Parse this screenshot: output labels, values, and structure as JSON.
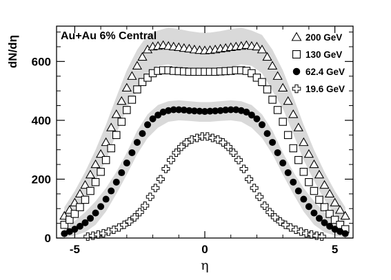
{
  "chart_data": {
    "type": "scatter",
    "title": "",
    "annotation": "Au+Au 6% Central",
    "xlabel": "η",
    "ylabel": "dN/dη",
    "xlim": [
      -5.7,
      5.7
    ],
    "ylim": [
      0,
      720
    ],
    "xticks": [
      -5,
      0,
      5
    ],
    "xtick_labels": [
      "-5",
      "0",
      "5"
    ],
    "yticks": [
      0,
      200,
      400,
      600
    ],
    "ytick_labels": [
      "0",
      "200",
      "400",
      "600"
    ],
    "grid": false,
    "legend_position": "top-right",
    "colors": {
      "band": "#d9d9d9",
      "marker": "#000000",
      "frame": "#000000",
      "background": "#ffffff"
    },
    "series": [
      {
        "name": "200 GeV",
        "marker": "open-triangle",
        "x": [
          -5.4,
          -5.2,
          -5.0,
          -4.8,
          -4.6,
          -4.4,
          -4.2,
          -4.0,
          -3.8,
          -3.6,
          -3.4,
          -3.2,
          -3.0,
          -2.8,
          -2.6,
          -2.4,
          -2.2,
          -2.0,
          -1.8,
          -1.6,
          -1.4,
          -1.2,
          -1.0,
          -0.8,
          -0.6,
          -0.4,
          -0.2,
          0.0,
          0.2,
          0.4,
          0.6,
          0.8,
          1.0,
          1.2,
          1.4,
          1.6,
          1.8,
          2.0,
          2.2,
          2.4,
          2.6,
          2.8,
          3.0,
          3.2,
          3.4,
          3.6,
          3.8,
          4.0,
          4.2,
          4.4,
          4.6,
          4.8,
          5.0,
          5.2,
          5.4
        ],
        "y": [
          75,
          95,
          120,
          150,
          180,
          215,
          250,
          285,
          325,
          375,
          420,
          465,
          510,
          550,
          585,
          615,
          640,
          650,
          652,
          655,
          652,
          650,
          648,
          645,
          643,
          640,
          638,
          637,
          638,
          640,
          643,
          645,
          648,
          650,
          652,
          655,
          652,
          650,
          640,
          615,
          585,
          550,
          510,
          465,
          420,
          375,
          325,
          285,
          250,
          215,
          180,
          150,
          120,
          95,
          75
        ]
      },
      {
        "name": "130 GeV",
        "marker": "open-square",
        "x": [
          -5.4,
          -5.2,
          -5.0,
          -4.8,
          -4.6,
          -4.4,
          -4.2,
          -4.0,
          -3.8,
          -3.6,
          -3.4,
          -3.2,
          -3.0,
          -2.8,
          -2.6,
          -2.4,
          -2.2,
          -2.0,
          -1.8,
          -1.6,
          -1.4,
          -1.2,
          -1.0,
          -0.8,
          -0.6,
          -0.4,
          -0.2,
          0.0,
          0.2,
          0.4,
          0.6,
          0.8,
          1.0,
          1.2,
          1.4,
          1.6,
          1.8,
          2.0,
          2.2,
          2.4,
          2.6,
          2.8,
          3.0,
          3.2,
          3.4,
          3.6,
          3.8,
          4.0,
          4.2,
          4.4,
          4.6,
          4.8,
          5.0,
          5.2,
          5.4
        ],
        "y": [
          45,
          62,
          82,
          105,
          130,
          160,
          190,
          225,
          265,
          305,
          350,
          395,
          435,
          470,
          505,
          530,
          545,
          560,
          568,
          570,
          570,
          568,
          567,
          566,
          565,
          565,
          565,
          565,
          565,
          565,
          566,
          567,
          568,
          570,
          570,
          568,
          560,
          545,
          530,
          505,
          470,
          435,
          395,
          350,
          305,
          265,
          225,
          190,
          160,
          130,
          105,
          82,
          62,
          45,
          30
        ]
      },
      {
        "name": "62.4 GeV",
        "marker": "filled-circle",
        "x": [
          -5.4,
          -5.2,
          -5.0,
          -4.8,
          -4.6,
          -4.4,
          -4.2,
          -4.0,
          -3.8,
          -3.6,
          -3.4,
          -3.2,
          -3.0,
          -2.8,
          -2.6,
          -2.4,
          -2.2,
          -2.0,
          -1.8,
          -1.6,
          -1.4,
          -1.2,
          -1.0,
          -0.8,
          -0.6,
          -0.4,
          -0.2,
          0.0,
          0.2,
          0.4,
          0.6,
          0.8,
          1.0,
          1.2,
          1.4,
          1.6,
          1.8,
          2.0,
          2.2,
          2.4,
          2.6,
          2.8,
          3.0,
          3.2,
          3.4,
          3.6,
          3.8,
          4.0,
          4.2,
          4.4,
          4.6,
          4.8,
          5.0,
          5.2,
          5.4
        ],
        "y": [
          15,
          22,
          30,
          40,
          52,
          67,
          85,
          107,
          132,
          160,
          190,
          222,
          255,
          290,
          325,
          355,
          385,
          405,
          418,
          428,
          433,
          436,
          436,
          435,
          433,
          432,
          431,
          430,
          431,
          432,
          433,
          435,
          436,
          436,
          433,
          428,
          418,
          405,
          385,
          355,
          325,
          290,
          255,
          222,
          190,
          160,
          132,
          107,
          85,
          67,
          52,
          40,
          30,
          22,
          15
        ]
      },
      {
        "name": "19.6 GeV",
        "marker": "open-cross",
        "x": [
          -4.5,
          -4.3,
          -4.1,
          -3.9,
          -3.7,
          -3.5,
          -3.3,
          -3.1,
          -2.9,
          -2.7,
          -2.5,
          -2.3,
          -2.1,
          -1.9,
          -1.7,
          -1.5,
          -1.3,
          -1.1,
          -0.9,
          -0.7,
          -0.5,
          -0.3,
          -0.1,
          0.1,
          0.3,
          0.5,
          0.7,
          0.9,
          1.1,
          1.3,
          1.5,
          1.7,
          1.9,
          2.1,
          2.3,
          2.5,
          2.7,
          2.9,
          3.1,
          3.3,
          3.5,
          3.7,
          3.9,
          4.1,
          4.3,
          4.5
        ],
        "y": [
          5,
          8,
          12,
          16,
          22,
          28,
          36,
          45,
          56,
          70,
          88,
          110,
          140,
          170,
          200,
          235,
          265,
          290,
          310,
          325,
          335,
          340,
          345,
          345,
          340,
          335,
          325,
          310,
          290,
          265,
          235,
          200,
          170,
          140,
          110,
          88,
          70,
          56,
          45,
          36,
          28,
          22,
          16,
          12,
          8,
          5
        ]
      }
    ],
    "bands": [
      {
        "for_series": "200 GeV",
        "x": [
          -5.4,
          -5.0,
          -4.6,
          -4.2,
          -3.8,
          -3.4,
          -3.0,
          -2.6,
          -2.2,
          -1.8,
          -1.4,
          -1.0,
          -0.6,
          -0.2,
          0.2,
          0.6,
          1.0,
          1.4,
          1.8,
          2.2,
          2.6,
          3.0,
          3.4,
          3.8,
          4.2,
          4.6,
          5.0,
          5.4
        ],
        "upper": [
          105,
          160,
          225,
          300,
          385,
          480,
          570,
          640,
          690,
          705,
          715,
          710,
          703,
          698,
          698,
          703,
          710,
          715,
          705,
          690,
          640,
          570,
          480,
          385,
          300,
          225,
          160,
          105
        ],
        "lower": [
          45,
          80,
          130,
          195,
          265,
          355,
          440,
          500,
          560,
          585,
          590,
          580,
          575,
          572,
          572,
          575,
          580,
          590,
          585,
          560,
          500,
          440,
          355,
          265,
          195,
          130,
          80,
          45
        ]
      },
      {
        "for_series": "62.4 GeV",
        "x": [
          -5.4,
          -5.0,
          -4.6,
          -4.2,
          -3.8,
          -3.4,
          -3.0,
          -2.6,
          -2.2,
          -1.8,
          -1.4,
          -1.0,
          -0.6,
          -0.2,
          0.2,
          0.6,
          1.0,
          1.4,
          1.8,
          2.2,
          2.6,
          3.0,
          3.4,
          3.8,
          4.2,
          4.6,
          5.0,
          5.4
        ],
        "upper": [
          35,
          58,
          88,
          125,
          170,
          225,
          290,
          365,
          420,
          452,
          465,
          468,
          465,
          462,
          462,
          465,
          468,
          465,
          452,
          420,
          365,
          290,
          225,
          170,
          125,
          88,
          58,
          35
        ],
        "lower": [
          2,
          8,
          20,
          45,
          90,
          150,
          215,
          285,
          340,
          375,
          395,
          400,
          398,
          395,
          395,
          398,
          400,
          395,
          375,
          340,
          285,
          215,
          150,
          90,
          45,
          20,
          8,
          2
        ]
      }
    ]
  }
}
